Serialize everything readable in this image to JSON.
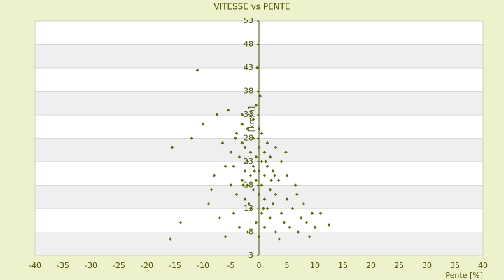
{
  "chart_data": {
    "type": "scatter",
    "title": "VITESSE vs PENTE",
    "x_label": "Pente [%]",
    "y_label": "[km/h]",
    "color": "#5f6e00",
    "grid": true,
    "xlim": [
      -40,
      40
    ],
    "xticks": [
      -40,
      -35,
      -30,
      -25,
      -20,
      -15,
      -10,
      -5,
      0,
      5,
      10,
      15,
      20,
      25,
      30,
      35,
      40
    ],
    "ylim": [
      3,
      53
    ],
    "yticks": [
      3,
      8,
      13,
      18,
      23,
      28,
      33,
      38,
      43,
      48,
      53
    ],
    "x": [
      -11,
      -0.3,
      -15.5,
      -15.8,
      12.5,
      11,
      -14,
      -12,
      -10,
      -9,
      -8,
      -7.5,
      -7,
      -6.5,
      -6,
      -5.5,
      -5,
      -5,
      -4.5,
      -4.5,
      -4,
      -4,
      -3.5,
      -3.5,
      -3,
      -3,
      -3,
      -2.5,
      -2.5,
      -2.5,
      -2,
      -2,
      -2,
      -2,
      -1.5,
      -1.5,
      -1.5,
      -1,
      -1,
      -1,
      -1,
      -0.5,
      -0.5,
      -0.5,
      -0.5,
      0,
      0,
      0,
      0,
      0,
      0.5,
      0.5,
      0.5,
      0.5,
      1,
      1,
      1,
      1,
      1.5,
      1.5,
      1.5,
      2,
      2,
      2,
      2.5,
      2.5,
      3,
      3,
      3,
      3.5,
      4,
      4,
      4.5,
      5,
      5,
      5.5,
      6,
      6.5,
      7,
      7.5,
      8,
      8.5,
      9,
      9.5,
      10,
      -8.5,
      -6,
      -3,
      0.2,
      4.8,
      6.8,
      -1.8,
      2.2,
      -4.2,
      3.6,
      -0.8,
      1.2,
      -2.8,
      0.8,
      2.8
    ],
    "values": [
      42.5,
      43,
      26,
      6.5,
      9.5,
      12,
      10,
      28,
      31,
      14,
      20,
      33,
      11,
      27,
      7,
      34,
      18,
      25,
      12,
      22,
      29,
      16,
      24,
      9,
      19,
      27,
      31,
      15,
      21,
      26,
      8,
      18,
      23,
      30,
      13,
      20,
      25,
      17,
      22,
      28,
      32,
      10,
      19,
      24,
      35,
      7,
      16,
      21,
      26,
      30,
      12,
      18,
      23,
      29,
      9,
      15,
      20,
      25,
      13,
      22,
      27,
      11,
      17,
      24,
      14,
      21,
      8,
      16,
      26,
      19,
      12,
      23,
      10,
      15,
      20,
      9,
      13,
      18,
      8,
      11,
      14,
      10,
      7,
      12,
      9,
      17,
      22,
      33,
      37,
      25,
      16,
      14,
      19,
      28,
      6.5,
      21,
      23,
      18,
      13,
      20
    ]
  }
}
